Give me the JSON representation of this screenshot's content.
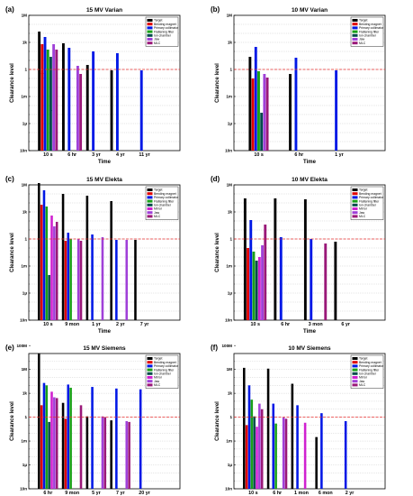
{
  "figure": {
    "legend_default": [
      "Target",
      "Bending magnet",
      "Primary collimator",
      "Flattening filter",
      "Ion chamber",
      "Jaw",
      "MLC"
    ],
    "colors": {
      "Target": "#000000",
      "Bending magnet": "#e00000",
      "Primary collimator": "#0018e6",
      "Flattening filter": "#18a018",
      "Ion chamber": "#004a4a",
      "Mirror": "#d020d0",
      "Jaw": "#a040d8",
      "MLC": "#9a1878"
    },
    "clearance_line_color": "#e83030"
  },
  "chart_data": [
    {
      "label": "(a)",
      "type": "bar",
      "title": "15 MV Varian",
      "xlabel": "Time",
      "ylabel": "Clearance level",
      "yscale": "log",
      "ylim_exp": [
        -9,
        6
      ],
      "yticks": [
        "10n",
        "1µ",
        "1m",
        "1",
        "1k",
        "1M"
      ],
      "clearance_level": 1,
      "legend": [
        "Target",
        "Bending magnet",
        "Primary collimator",
        "Flattening filter",
        "Ion chamber",
        "Jaw",
        "MLC"
      ],
      "categories": [
        "10 s",
        "6 hr",
        "3 yr",
        "4 yr",
        "11 yr"
      ],
      "values_log10": [
        [
          4.2,
          2.8,
          3.6,
          2.2,
          1.4,
          2.8,
          2.2
        ],
        [
          2.9,
          null,
          2.4,
          null,
          null,
          0.4,
          -0.5
        ],
        [
          0.5,
          null,
          2.0,
          null,
          null,
          null,
          null
        ],
        [
          -0.1,
          null,
          1.8,
          null,
          null,
          null,
          null
        ],
        [
          null,
          null,
          -0.1,
          null,
          null,
          null,
          null
        ]
      ],
      "small_marks_log10": [
        [
          null,
          -0.4,
          -0.9,
          null,
          -4.5,
          null,
          null
        ],
        [
          null,
          null,
          null,
          null,
          null,
          null,
          null
        ],
        [
          null,
          null,
          null,
          null,
          null,
          null,
          null
        ],
        [
          null,
          null,
          null,
          null,
          null,
          null,
          null
        ],
        [
          null,
          null,
          null,
          null,
          null,
          null,
          null
        ]
      ]
    },
    {
      "label": "(b)",
      "type": "bar",
      "title": "10 MV Varian",
      "xlabel": "Time",
      "ylabel": "Clearance level",
      "yscale": "log",
      "ylim_exp": [
        -9,
        6
      ],
      "yticks": [
        "10n",
        "1µ",
        "1m",
        "1",
        "1k",
        "1M"
      ],
      "clearance_level": 1,
      "legend": [
        "Target",
        "Bending magnet",
        "Primary collimator",
        "Flattening filter",
        "Ion chamber",
        "Jaw",
        "MLC"
      ],
      "categories": [
        "10 s",
        "6 hr",
        "1 yr"
      ],
      "values_log10": [
        [
          1.4,
          -1.0,
          2.5,
          -0.2,
          -4.8,
          -0.5,
          -0.9
        ],
        [
          -0.5,
          null,
          1.3,
          null,
          null,
          null,
          null
        ],
        [
          null,
          null,
          -0.1,
          null,
          null,
          null,
          null
        ]
      ]
    },
    {
      "label": "(c)",
      "type": "bar",
      "title": "15 MV Elekta",
      "xlabel": "Time",
      "ylabel": "Clearance level",
      "yscale": "log",
      "ylim_exp": [
        -9,
        6
      ],
      "yticks": [
        "10n",
        "1µ",
        "1m",
        "1",
        "1k",
        "1M"
      ],
      "clearance_level": 1,
      "legend": [
        "Target",
        "Bending magnet",
        "Primary collimator",
        "Flattening filter",
        "Ion chamber",
        "Mirror",
        "Jaw",
        "MLC"
      ],
      "categories": [
        "10 s",
        "9 mon",
        "1 yr",
        "2 yr",
        "7 yr"
      ],
      "values_log10": [
        [
          6.2,
          3.8,
          5.4,
          3.6,
          -4.0,
          2.6,
          1.4,
          1.9
        ],
        [
          5.0,
          -0.2,
          0.7,
          0.0,
          null,
          null,
          0.0,
          -0.2
        ],
        [
          4.8,
          null,
          0.5,
          null,
          null,
          null,
          0.2,
          null
        ],
        [
          4.2,
          null,
          -0.1,
          null,
          null,
          null,
          -0.1,
          null
        ],
        [
          -0.1,
          null,
          null,
          null,
          null,
          null,
          null,
          null
        ]
      ]
    },
    {
      "label": "(d)",
      "type": "bar",
      "title": "10 MV Elekta",
      "xlabel": "Time",
      "ylabel": "Clearance level",
      "yscale": "log",
      "ylim_exp": [
        -9,
        6
      ],
      "yticks": [
        "10n",
        "1µ",
        "1m",
        "1",
        "1k",
        "1M"
      ],
      "clearance_level": 1,
      "legend": [
        "Target",
        "Bending magnet",
        "Primary collimator",
        "Flattening filter",
        "Ion chamber",
        "Mirror",
        "Jaw",
        "MLC"
      ],
      "categories": [
        "10 s",
        "6 hr",
        "3 mon",
        "6 yr"
      ],
      "values_log10": [
        [
          4.5,
          -1.0,
          2.1,
          -1.4,
          -2.4,
          -2.0,
          -0.7,
          1.6
        ],
        [
          4.5,
          null,
          0.2,
          null,
          null,
          null,
          null,
          null
        ],
        [
          4.4,
          null,
          0.0,
          null,
          null,
          null,
          null,
          -0.5
        ],
        [
          -0.3,
          null,
          null,
          null,
          null,
          null,
          null,
          null
        ]
      ]
    },
    {
      "label": "(e)",
      "type": "bar",
      "title": "15 MV Siemens",
      "xlabel": "Time",
      "ylabel": "Clearance level",
      "yscale": "log",
      "ylim_exp": [
        -9,
        8
      ],
      "yticks": [
        "10n",
        "1µ",
        "1m",
        "1",
        "1k",
        "1M",
        "100M"
      ],
      "clearance_level": 1,
      "legend": [
        "Target",
        "Bending magnet",
        "Primary collimator",
        "Flattening filter",
        "Ion chamber",
        "Mirror",
        "Jaw",
        "MLC"
      ],
      "categories": [
        "6 hr",
        "9 mon",
        "5 yr",
        "7 yr",
        "20 yr"
      ],
      "values_log10": [
        [
          8.0,
          1.5,
          4.3,
          4.0,
          -0.6,
          3.2,
          2.5,
          2.4
        ],
        [
          1.8,
          -0.2,
          4.1,
          3.7,
          null,
          null,
          null,
          1.5
        ],
        [
          0.1,
          null,
          3.8,
          null,
          null,
          null,
          0.1,
          0.0
        ],
        [
          -0.4,
          null,
          3.6,
          null,
          null,
          null,
          -0.5,
          -0.6
        ],
        [
          null,
          null,
          3.5,
          null,
          null,
          null,
          null,
          null
        ]
      ]
    },
    {
      "label": "(f)",
      "type": "bar",
      "title": "10 MV Siemens",
      "xlabel": "Time",
      "ylabel": "Clearance level",
      "yscale": "log",
      "ylim_exp": [
        -9,
        8
      ],
      "yticks": [
        "10n",
        "1µ",
        "1m",
        "1",
        "1k",
        "1M",
        "100M"
      ],
      "clearance_level": 1,
      "legend": [
        "Target",
        "Bending magnet",
        "Primary collimator",
        "Flattening filter",
        "Ion chamber",
        "Mirror",
        "Jaw",
        "MLC"
      ],
      "categories": [
        "10 s",
        "6 hr",
        "1 mon",
        "6 mon",
        "2 yr"
      ],
      "values_log10": [
        [
          6.2,
          -1.0,
          4.0,
          2.2,
          0.1,
          -1.2,
          1.7,
          1.0
        ],
        [
          6.1,
          null,
          1.7,
          -0.8,
          null,
          null,
          0.0,
          -0.2
        ],
        [
          4.2,
          null,
          1.5,
          null,
          null,
          -0.7,
          null,
          null
        ],
        [
          -2.5,
          null,
          0.5,
          null,
          null,
          null,
          null,
          null
        ],
        [
          null,
          null,
          -0.5,
          null,
          null,
          null,
          null,
          null
        ]
      ]
    }
  ]
}
